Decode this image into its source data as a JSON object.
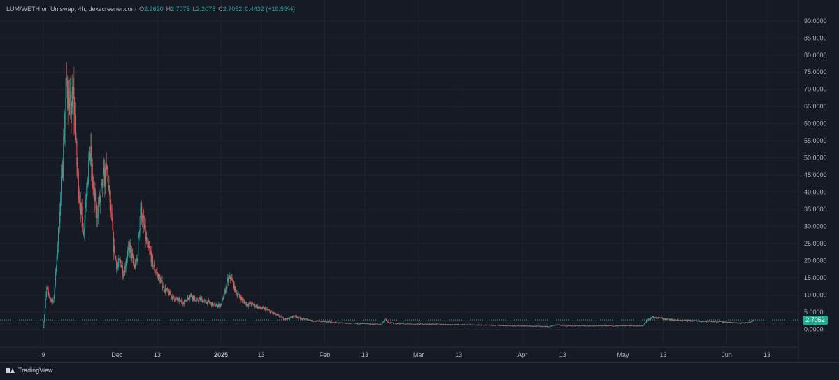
{
  "legend": {
    "symbol": "LUM/WETH on Uniswap, 4h, dexscreener.com",
    "open_label": "O",
    "open": "2.2620",
    "high_label": "H",
    "high": "2.7078",
    "low_label": "L",
    "low": "2.2075",
    "close_label": "C",
    "close": "2.7052",
    "change": "0.4432 (+19.59%)"
  },
  "current_price": "2.7052",
  "footer": {
    "brand": "TradingView"
  },
  "colors": {
    "up": "#26a69a",
    "down": "#ef5350",
    "background": "#161a25",
    "grid": "#1f2330",
    "badge": "#22ab94"
  },
  "chart_data": {
    "type": "candlestick",
    "title": "",
    "xlabel": "",
    "ylabel": "",
    "ylim": [
      -4,
      92
    ],
    "y_ticks": [
      "90.0000",
      "85.0000",
      "80.0000",
      "75.0000",
      "70.0000",
      "65.0000",
      "60.0000",
      "55.0000",
      "50.0000",
      "45.0000",
      "40.0000",
      "35.0000",
      "30.0000",
      "25.0000",
      "20.0000",
      "15.0000",
      "10.0000",
      "5.0000",
      "0.0000"
    ],
    "y_tick_values": [
      90,
      85,
      80,
      75,
      70,
      65,
      60,
      55,
      50,
      45,
      40,
      35,
      30,
      25,
      20,
      15,
      10,
      5,
      0
    ],
    "x_start": "2024-11-09",
    "x_range": [
      "2024-11-09",
      "2025-06-13"
    ],
    "x_ticks": [
      {
        "date": "2024-11-09",
        "label": "9",
        "bold": false
      },
      {
        "date": "2024-12-01",
        "label": "Dec",
        "bold": false
      },
      {
        "date": "2024-12-13",
        "label": "13",
        "bold": false
      },
      {
        "date": "2025-01-01",
        "label": "2025",
        "bold": true
      },
      {
        "date": "2025-01-13",
        "label": "13",
        "bold": false
      },
      {
        "date": "2025-02-01",
        "label": "Feb",
        "bold": false
      },
      {
        "date": "2025-02-13",
        "label": "13",
        "bold": false
      },
      {
        "date": "2025-03-01",
        "label": "Mar",
        "bold": false
      },
      {
        "date": "2025-03-13",
        "label": "13",
        "bold": false
      },
      {
        "date": "2025-04-01",
        "label": "Apr",
        "bold": false
      },
      {
        "date": "2025-04-13",
        "label": "13",
        "bold": false
      },
      {
        "date": "2025-05-01",
        "label": "May",
        "bold": false
      },
      {
        "date": "2025-05-13",
        "label": "13",
        "bold": false
      },
      {
        "date": "2025-06-01",
        "label": "Jun",
        "bold": false
      },
      {
        "date": "2025-06-13",
        "label": "13",
        "bold": false
      }
    ],
    "last_close": 2.7052,
    "series": [
      {
        "name": "LUM/WETH",
        "values": [
          [
            "2024-11-09",
            0.5
          ],
          [
            "2024-11-10",
            12
          ],
          [
            "2024-11-11",
            9
          ],
          [
            "2024-11-12",
            8
          ],
          [
            "2024-11-13",
            20
          ],
          [
            "2024-11-14",
            36
          ],
          [
            "2024-11-15",
            54
          ],
          [
            "2024-11-16",
            72
          ],
          [
            "2024-11-17",
            64
          ],
          [
            "2024-11-18",
            68
          ],
          [
            "2024-11-19",
            48
          ],
          [
            "2024-11-20",
            36
          ],
          [
            "2024-11-21",
            28
          ],
          [
            "2024-11-22",
            44
          ],
          [
            "2024-11-23",
            52
          ],
          [
            "2024-11-24",
            40
          ],
          [
            "2024-11-25",
            34
          ],
          [
            "2024-11-26",
            38
          ],
          [
            "2024-11-27",
            44
          ],
          [
            "2024-11-28",
            46
          ],
          [
            "2024-11-29",
            36
          ],
          [
            "2024-11-30",
            24
          ],
          [
            "2024-12-01",
            18
          ],
          [
            "2024-12-02",
            20
          ],
          [
            "2024-12-03",
            16
          ],
          [
            "2024-12-04",
            22
          ],
          [
            "2024-12-05",
            24
          ],
          [
            "2024-12-06",
            18
          ],
          [
            "2024-12-07",
            20
          ],
          [
            "2024-12-08",
            36
          ],
          [
            "2024-12-09",
            30
          ],
          [
            "2024-12-10",
            24
          ],
          [
            "2024-12-11",
            22
          ],
          [
            "2024-12-12",
            18
          ],
          [
            "2024-12-13",
            16
          ],
          [
            "2024-12-14",
            14
          ],
          [
            "2024-12-15",
            12
          ],
          [
            "2024-12-16",
            11
          ],
          [
            "2024-12-17",
            10
          ],
          [
            "2024-12-18",
            9
          ],
          [
            "2024-12-19",
            8.5
          ],
          [
            "2024-12-20",
            8
          ],
          [
            "2024-12-21",
            8
          ],
          [
            "2024-12-22",
            9
          ],
          [
            "2024-12-23",
            10
          ],
          [
            "2024-12-24",
            9
          ],
          [
            "2024-12-25",
            8
          ],
          [
            "2024-12-26",
            9
          ],
          [
            "2024-12-27",
            8
          ],
          [
            "2024-12-28",
            8
          ],
          [
            "2024-12-29",
            7.5
          ],
          [
            "2024-12-30",
            7
          ],
          [
            "2024-12-31",
            7
          ],
          [
            "2025-01-01",
            7
          ],
          [
            "2025-01-02",
            10
          ],
          [
            "2025-01-03",
            14
          ],
          [
            "2025-01-04",
            15
          ],
          [
            "2025-01-05",
            12
          ],
          [
            "2025-01-06",
            10
          ],
          [
            "2025-01-07",
            9
          ],
          [
            "2025-01-08",
            8
          ],
          [
            "2025-01-09",
            7
          ],
          [
            "2025-01-10",
            7.5
          ],
          [
            "2025-01-11",
            7
          ],
          [
            "2025-01-12",
            6.5
          ],
          [
            "2025-01-13",
            6
          ],
          [
            "2025-01-14",
            6
          ],
          [
            "2025-01-15",
            5.5
          ],
          [
            "2025-01-16",
            5
          ],
          [
            "2025-01-17",
            4.5
          ],
          [
            "2025-01-18",
            4
          ],
          [
            "2025-01-19",
            3.5
          ],
          [
            "2025-01-20",
            3
          ],
          [
            "2025-01-21",
            3
          ],
          [
            "2025-01-22",
            3.5
          ],
          [
            "2025-01-23",
            4
          ],
          [
            "2025-01-24",
            3.5
          ],
          [
            "2025-01-25",
            3
          ],
          [
            "2025-01-26",
            3
          ],
          [
            "2025-01-27",
            2.8
          ],
          [
            "2025-01-28",
            2.5
          ],
          [
            "2025-01-30",
            2.3
          ],
          [
            "2025-02-01",
            2.2
          ],
          [
            "2025-02-03",
            2
          ],
          [
            "2025-02-06",
            1.8
          ],
          [
            "2025-02-09",
            1.7
          ],
          [
            "2025-02-12",
            1.6
          ],
          [
            "2025-02-15",
            1.5
          ],
          [
            "2025-02-18",
            1.5
          ],
          [
            "2025-02-19",
            3
          ],
          [
            "2025-02-20",
            1.9
          ],
          [
            "2025-02-23",
            1.6
          ],
          [
            "2025-02-26",
            1.5
          ],
          [
            "2025-03-01",
            1.5
          ],
          [
            "2025-03-05",
            1.5
          ],
          [
            "2025-03-10",
            1.4
          ],
          [
            "2025-03-15",
            1.3
          ],
          [
            "2025-03-20",
            1.2
          ],
          [
            "2025-03-25",
            1.1
          ],
          [
            "2025-03-30",
            1
          ],
          [
            "2025-04-04",
            0.9
          ],
          [
            "2025-04-09",
            0.8
          ],
          [
            "2025-04-11",
            1.3
          ],
          [
            "2025-04-14",
            1
          ],
          [
            "2025-04-19",
            1
          ],
          [
            "2025-04-24",
            1
          ],
          [
            "2025-04-29",
            1
          ],
          [
            "2025-05-04",
            1
          ],
          [
            "2025-05-07",
            1
          ],
          [
            "2025-05-08",
            2.5
          ],
          [
            "2025-05-09",
            3
          ],
          [
            "2025-05-10",
            3.5
          ],
          [
            "2025-05-11",
            3
          ],
          [
            "2025-05-12",
            3.5
          ],
          [
            "2025-05-13",
            3
          ],
          [
            "2025-05-15",
            2.8
          ],
          [
            "2025-05-18",
            2.6
          ],
          [
            "2025-05-21",
            2.5
          ],
          [
            "2025-05-24",
            2.4
          ],
          [
            "2025-05-27",
            2.3
          ],
          [
            "2025-05-30",
            2.2
          ],
          [
            "2025-06-02",
            2
          ],
          [
            "2025-06-05",
            1.8
          ],
          [
            "2025-06-08",
            2
          ],
          [
            "2025-06-09",
            2.7052
          ]
        ]
      }
    ]
  }
}
